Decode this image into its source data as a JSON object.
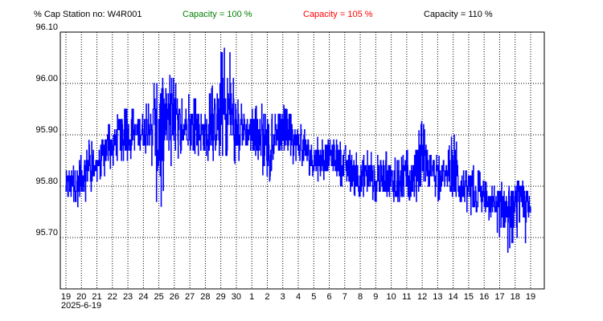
{
  "header": {
    "ylabel": "% Cap",
    "station": "Station no: W4R001"
  },
  "legend": [
    {
      "label": "Capacity = 100 %",
      "color": "#008000"
    },
    {
      "label": "Capacity = 105 %",
      "color": "#ff0000"
    },
    {
      "label": "Capacity = 110 %",
      "color": "#000000"
    }
  ],
  "start_date": "2025-6-19",
  "chart_data": {
    "type": "line",
    "ylabel": "% Cap",
    "ylim": [
      95.6,
      96.1
    ],
    "y_ticks": [
      "96.10",
      "96.00",
      "95.90",
      "95.80",
      "95.70"
    ],
    "x_ticks": [
      "19",
      "20",
      "21",
      "22",
      "23",
      "24",
      "25",
      "26",
      "27",
      "28",
      "29",
      "30",
      "1",
      "2",
      "3",
      "4",
      "5",
      "6",
      "7",
      "8",
      "9",
      "10",
      "11",
      "12",
      "13",
      "14",
      "15",
      "16",
      "17",
      "18",
      "19"
    ],
    "grid": "dotted",
    "series_color": "#0000ff",
    "series": [
      {
        "x": [
          0,
          0.5,
          1,
          1.5,
          2,
          2.5,
          3,
          3.5,
          4,
          4.5,
          5,
          5.5,
          6,
          6.5,
          7,
          7.5,
          8,
          8.5,
          9,
          9.5,
          10,
          10.5,
          11,
          11.5,
          12,
          12.5,
          13,
          13.5,
          14,
          14.5,
          15,
          15.5,
          16,
          16.5,
          17,
          17.5,
          18,
          18.5,
          19,
          19.5,
          20,
          20.5,
          21,
          21.5,
          22,
          22.5,
          23,
          23.5,
          24,
          24.5,
          25,
          25.5,
          26,
          26.5,
          27,
          27.5,
          28,
          28.5,
          29,
          29.5,
          30
        ],
        "y_min": [
          95.75,
          95.75,
          95.76,
          95.78,
          95.81,
          95.82,
          95.84,
          95.85,
          95.85,
          95.86,
          95.87,
          95.85,
          95.73,
          95.84,
          95.84,
          95.87,
          95.87,
          95.86,
          95.85,
          95.85,
          95.86,
          95.86,
          95.84,
          95.86,
          95.86,
          95.85,
          95.78,
          95.88,
          95.85,
          95.85,
          95.83,
          95.83,
          95.81,
          95.81,
          95.82,
          95.81,
          95.79,
          95.79,
          95.76,
          95.78,
          95.77,
          95.77,
          95.76,
          95.75,
          95.78,
          95.76,
          95.79,
          95.8,
          95.77,
          95.79,
          95.76,
          95.74,
          95.75,
          95.73,
          95.74,
          95.73,
          95.7,
          95.67,
          95.7,
          95.68,
          95.7
        ],
        "y_max": [
          95.83,
          95.84,
          95.88,
          95.89,
          95.88,
          95.92,
          95.92,
          95.95,
          95.95,
          95.95,
          95.96,
          95.96,
          96.08,
          96.02,
          96.01,
          95.97,
          95.98,
          95.97,
          95.96,
          96.0,
          96.06,
          96.08,
          95.97,
          95.96,
          95.95,
          95.96,
          95.96,
          95.97,
          95.96,
          95.94,
          95.93,
          95.91,
          95.9,
          95.89,
          95.9,
          95.89,
          95.88,
          95.87,
          95.86,
          95.87,
          95.86,
          95.87,
          95.86,
          95.85,
          95.87,
          95.88,
          95.93,
          95.87,
          95.86,
          95.85,
          95.91,
          95.85,
          95.85,
          95.84,
          95.81,
          95.8,
          95.81,
          95.8,
          95.81,
          95.81,
          95.79
        ],
        "y_mid": [
          95.8,
          95.8,
          95.82,
          95.84,
          95.84,
          95.87,
          95.88,
          95.9,
          95.9,
          95.9,
          95.91,
          95.91,
          95.9,
          95.93,
          95.92,
          95.92,
          95.92,
          95.91,
          95.9,
          95.92,
          95.94,
          95.95,
          95.91,
          95.91,
          95.9,
          95.9,
          95.88,
          95.92,
          95.9,
          95.89,
          95.88,
          95.87,
          95.85,
          95.85,
          95.86,
          95.85,
          95.84,
          95.83,
          95.81,
          95.82,
          95.81,
          95.82,
          95.81,
          95.8,
          95.82,
          95.82,
          95.85,
          95.84,
          95.82,
          95.82,
          95.83,
          95.8,
          95.8,
          95.78,
          95.77,
          95.76,
          95.76,
          95.75,
          95.76,
          95.76,
          95.75
        ]
      }
    ]
  }
}
